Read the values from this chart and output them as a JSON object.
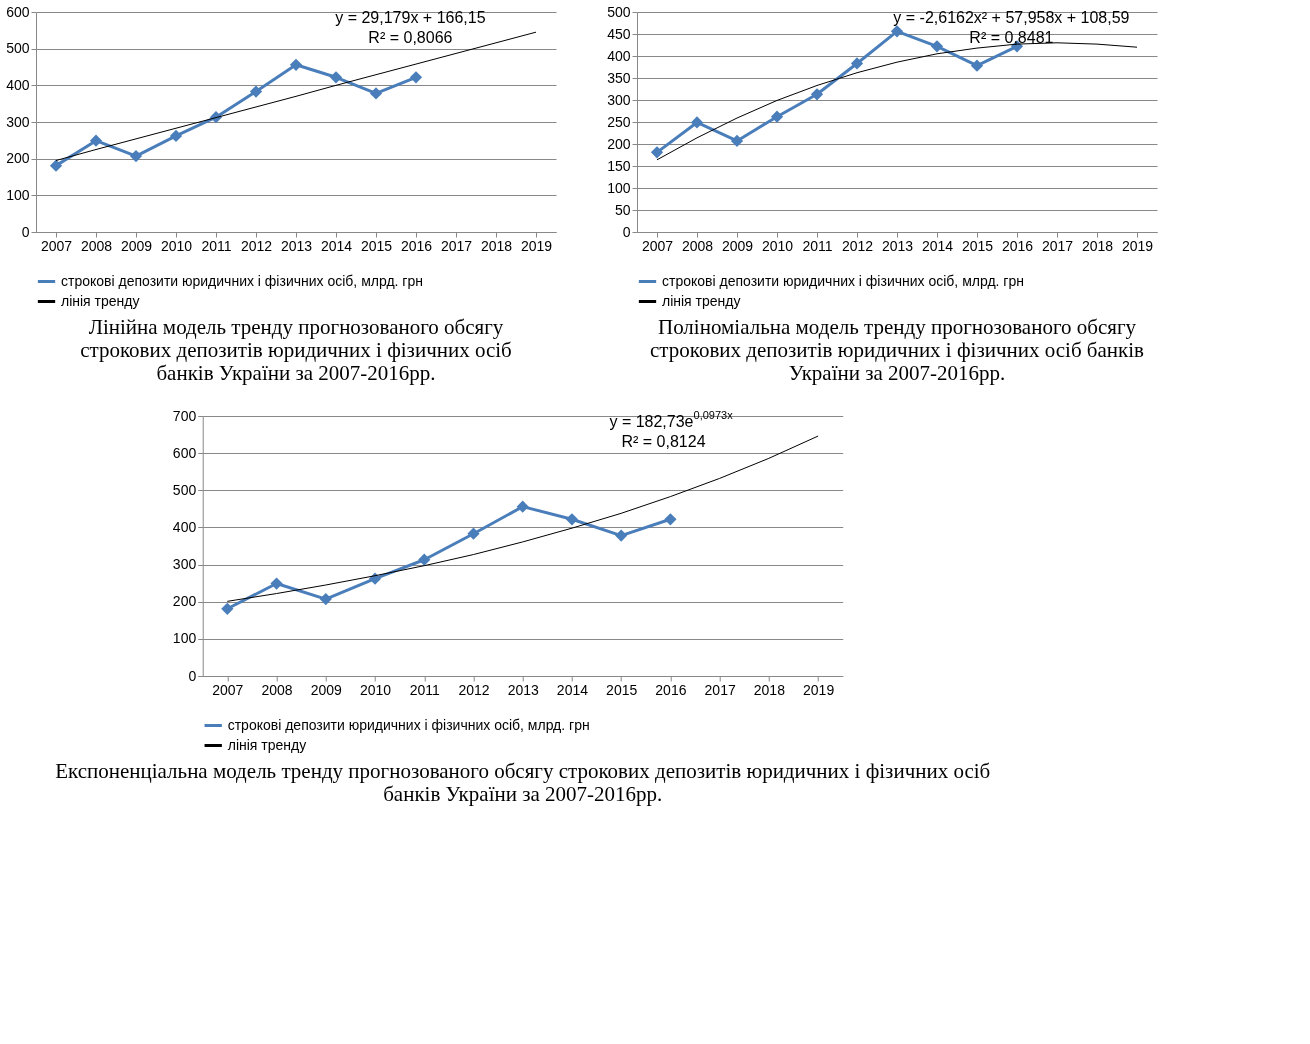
{
  "chart_data": [
    {
      "type": "line",
      "title": "Лінійна модель тренду прогнозованого обсягу строкових депозитів юридичних і фізичних осіб банків України за 2007-2016рр.",
      "categories": [
        "2007",
        "2008",
        "2009",
        "2010",
        "2011",
        "2012",
        "2013",
        "2014",
        "2015",
        "2016",
        "2017",
        "2018",
        "2019"
      ],
      "ylim": [
        0,
        600
      ],
      "yticks": [
        0,
        100,
        200,
        300,
        400,
        500,
        600
      ],
      "grid": "y",
      "legend": "bottom",
      "annotations": [
        "y = 29,179x + 166,15",
        "R² = 0,8066"
      ],
      "series": [
        {
          "name": "строкові депозити юридичних і фізичних осіб, млрд. грн",
          "color": "#4a7ebb",
          "marker": "diamond",
          "values": [
            181,
            249,
            207,
            262,
            313,
            383,
            456,
            422,
            378,
            422,
            null,
            null,
            null
          ]
        },
        {
          "name": "лінія тренду",
          "color": "#000000",
          "marker": "none",
          "values": [
            195,
            225,
            254,
            283,
            312,
            341,
            370,
            400,
            429,
            458,
            487,
            516,
            545
          ]
        }
      ]
    },
    {
      "type": "line",
      "title": "Поліноміальна модель тренду прогнозованого обсягу строкових депозитів юридичних і фізичних осіб банків України за 2007-2016рр.",
      "categories": [
        "2007",
        "2008",
        "2009",
        "2010",
        "2011",
        "2012",
        "2013",
        "2014",
        "2015",
        "2016",
        "2017",
        "2018",
        "2019"
      ],
      "ylim": [
        0,
        500
      ],
      "yticks": [
        0,
        50,
        100,
        150,
        200,
        250,
        300,
        350,
        400,
        450,
        500
      ],
      "grid": "y",
      "legend": "bottom",
      "annotations": [
        "y = -2,6162x² + 57,958x + 108,59",
        "R² = 0,8481"
      ],
      "series": [
        {
          "name": "строкові депозити юридичних і фізичних осіб, млрд. грн",
          "color": "#4a7ebb",
          "marker": "diamond",
          "values": [
            181,
            249,
            207,
            262,
            313,
            383,
            456,
            422,
            378,
            422,
            null,
            null,
            null
          ]
        },
        {
          "name": "лінія тренду",
          "color": "#000000",
          "marker": "none",
          "values": [
            164,
            214,
            259,
            299,
            333,
            362,
            386,
            405,
            418,
            427,
            430,
            427,
            420
          ]
        }
      ]
    },
    {
      "type": "line",
      "title": "Експоненціальна модель тренду прогнозованого обсягу строкових депозитів юридичних і фізичних осіб банків України за 2007-2016рр.",
      "categories": [
        "2007",
        "2008",
        "2009",
        "2010",
        "2011",
        "2012",
        "2013",
        "2014",
        "2015",
        "2016",
        "2017",
        "2018",
        "2019"
      ],
      "ylim": [
        0,
        700
      ],
      "yticks": [
        0,
        100,
        200,
        300,
        400,
        500,
        600,
        700
      ],
      "grid": "y",
      "legend": "bottom",
      "annotations": [
        "y = 182,73e$^{0,0973x}$",
        "R² = 0,8124"
      ],
      "series": [
        {
          "name": "строкові депозити юридичних і фізичних осіб, млрд. грн",
          "color": "#4a7ebb",
          "marker": "diamond",
          "values": [
            181,
            249,
            207,
            262,
            313,
            383,
            456,
            422,
            378,
            422,
            null,
            null,
            null
          ]
        },
        {
          "name": "лінія тренду",
          "color": "#000000",
          "marker": "none",
          "values": [
            201,
            222,
            245,
            270,
            297,
            327,
            361,
            398,
            438,
            483,
            532,
            586,
            646
          ]
        }
      ]
    }
  ]
}
